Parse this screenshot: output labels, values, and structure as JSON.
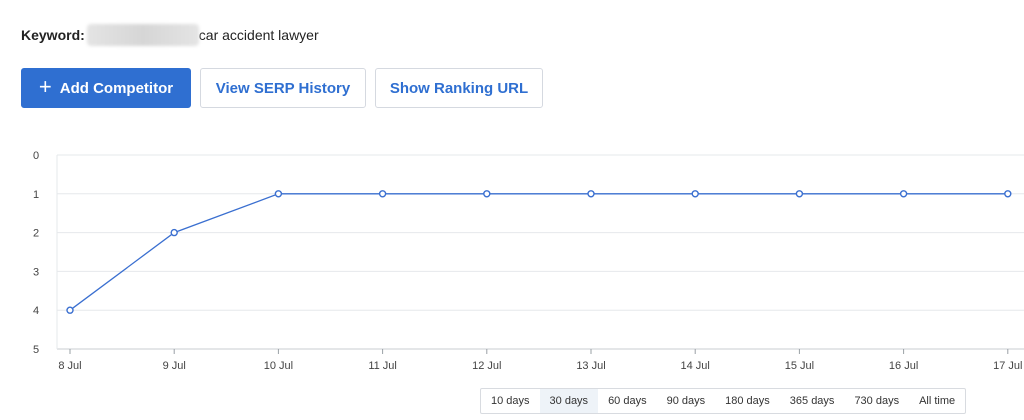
{
  "keyword": {
    "label": "Keyword:",
    "value": "car accident lawyer"
  },
  "toolbar": {
    "add_competitor": "Add Competitor",
    "view_serp_history": "View SERP History",
    "show_ranking_url": "Show Ranking URL",
    "accent_color": "#2f6fd1"
  },
  "chart_data": {
    "type": "line",
    "categories": [
      "8 Jul",
      "9 Jul",
      "10 Jul",
      "11 Jul",
      "12 Jul",
      "13 Jul",
      "14 Jul",
      "15 Jul",
      "16 Jul",
      "17 Jul"
    ],
    "series": [
      {
        "values": [
          4,
          2,
          1,
          1,
          1,
          1,
          1,
          1,
          1,
          1
        ]
      }
    ],
    "y_ticks": [
      0,
      1,
      2,
      3,
      4,
      5
    ],
    "ylim": [
      0,
      5
    ],
    "y_inverted": true,
    "grid": true,
    "line_color": "#3a6fd0"
  },
  "ranges": {
    "items": [
      "10 days",
      "30 days",
      "60 days",
      "90 days",
      "180 days",
      "365 days",
      "730 days",
      "All time"
    ],
    "active": "30 days"
  }
}
